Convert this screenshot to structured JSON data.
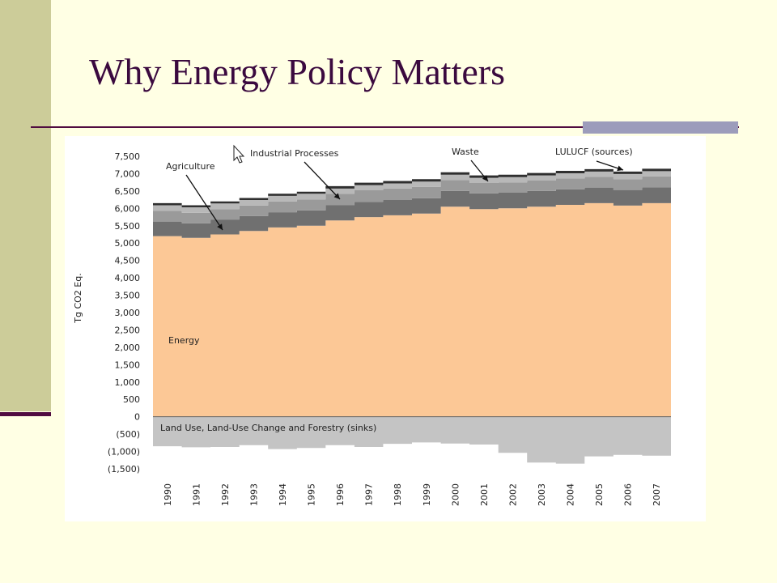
{
  "slide": {
    "title": "Why Energy Policy Matters"
  },
  "chart_data": {
    "type": "area",
    "x": [
      "1990",
      "1991",
      "1992",
      "1993",
      "1994",
      "1995",
      "1996",
      "1997",
      "1998",
      "1999",
      "2000",
      "2001",
      "2002",
      "2003",
      "2004",
      "2005",
      "2006",
      "2007"
    ],
    "ylabel": "Tg CO2 Eq.",
    "ylim": [
      -1500,
      7500
    ],
    "yticks": [
      "7,500",
      "7,000",
      "6,500",
      "6,000",
      "5,500",
      "5,000",
      "4,500",
      "4,000",
      "3,500",
      "3,000",
      "2,500",
      "2,000",
      "1,500",
      "1,000",
      "500",
      "0",
      "(500)",
      "(1,000)",
      "(1,500)"
    ],
    "series": [
      {
        "name": "Energy",
        "color": "#FCC896",
        "values": [
          5200,
          5150,
          5250,
          5350,
          5450,
          5500,
          5650,
          5750,
          5800,
          5850,
          6050,
          5980,
          6000,
          6050,
          6100,
          6150,
          6080,
          6150
        ]
      },
      {
        "name": "Agriculture",
        "color": "#707070",
        "values": [
          420,
          420,
          430,
          430,
          440,
          440,
          440,
          440,
          440,
          440,
          450,
          450,
          450,
          450,
          450,
          450,
          450,
          460
        ]
      },
      {
        "name": "Industrial Processes",
        "color": "#9A9A9A",
        "values": [
          310,
          300,
          300,
          300,
          310,
          320,
          330,
          330,
          330,
          330,
          320,
          300,
          300,
          300,
          310,
          310,
          310,
          310
        ]
      },
      {
        "name": "Waste",
        "color": "#B8B8B8",
        "values": [
          160,
          160,
          160,
          160,
          160,
          160,
          150,
          150,
          150,
          150,
          150,
          150,
          150,
          150,
          150,
          150,
          150,
          150
        ]
      },
      {
        "name": "LULUCF (sources)",
        "color": "#2F2F2F",
        "values": [
          60,
          60,
          60,
          60,
          60,
          60,
          70,
          70,
          70,
          70,
          70,
          70,
          70,
          70,
          70,
          70,
          70,
          70
        ]
      },
      {
        "name": "Land Use, Land-Use Change and Forestry (sinks)",
        "color": "#C4C4C4",
        "values": [
          -850,
          -880,
          -870,
          -820,
          -930,
          -900,
          -820,
          -870,
          -780,
          -740,
          -770,
          -800,
          -1040,
          -1320,
          -1350,
          -1140,
          -1100,
          -1120
        ]
      }
    ],
    "annotations": [
      "Agriculture",
      "Industrial Processes",
      "Waste",
      "LULUCF (sources)",
      "Energy",
      "Land Use, Land-Use Change and Forestry (sinks)"
    ]
  }
}
